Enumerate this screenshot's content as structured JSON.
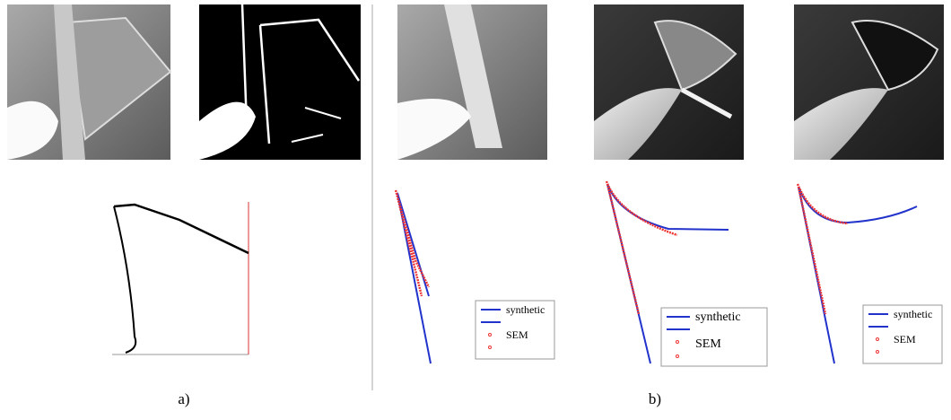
{
  "panels": [
    {
      "label": "a)"
    },
    {
      "label": "b)",
      "legends": [
        {
          "entries": [
            "synthetic",
            "SEM"
          ]
        },
        {
          "entries": [
            "synthetic",
            "SEM"
          ]
        },
        {
          "entries": [
            "synthetic",
            "SEM"
          ]
        }
      ]
    }
  ]
}
